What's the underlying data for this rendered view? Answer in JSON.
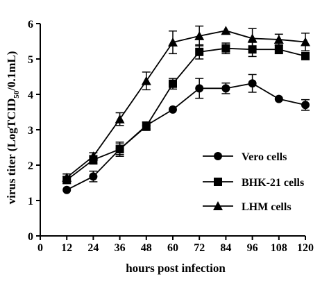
{
  "chart_data": {
    "type": "line",
    "xlabel": "hours post infection",
    "ylabel_main": "virus titer (LogTCID",
    "ylabel_sub": "50",
    "ylabel_tail": "/0.1mL)",
    "xlim": [
      0,
      120
    ],
    "ylim": [
      0,
      6
    ],
    "x_ticks": [
      0,
      12,
      24,
      36,
      48,
      60,
      72,
      84,
      96,
      108,
      120
    ],
    "x_tick_labels": [
      "0",
      "12",
      "24",
      "36",
      "48",
      "60",
      "72",
      "84",
      "96",
      "108",
      "120"
    ],
    "y_ticks": [
      0,
      1,
      2,
      3,
      4,
      5,
      6
    ],
    "y_tick_labels": [
      "0",
      "1",
      "2",
      "3",
      "4",
      "5",
      "6"
    ],
    "grid": false,
    "legend_position": "bottom-right",
    "x": [
      12,
      24,
      36,
      48,
      60,
      72,
      84,
      96,
      108,
      120
    ],
    "series": [
      {
        "name": "Vero cells",
        "marker": "circle",
        "values": [
          1.3,
          1.68,
          2.45,
          3.12,
          3.57,
          4.17,
          4.17,
          4.31,
          3.87,
          3.7
        ],
        "errors": [
          0.0,
          0.15,
          0.15,
          0.1,
          0.0,
          0.28,
          0.15,
          0.25,
          0.0,
          0.15
        ]
      },
      {
        "name": "BHK-21 cells",
        "marker": "square",
        "values": [
          1.58,
          2.15,
          2.45,
          3.1,
          4.3,
          5.2,
          5.3,
          5.27,
          5.27,
          5.08
        ],
        "errors": [
          0.1,
          0.12,
          0.2,
          0.12,
          0.15,
          0.2,
          0.15,
          0.2,
          0.12,
          0.0
        ]
      },
      {
        "name": "LHM cells",
        "marker": "triangle",
        "values": [
          1.65,
          2.25,
          3.3,
          4.38,
          5.47,
          5.65,
          5.8,
          5.58,
          5.55,
          5.48
        ],
        "errors": [
          0.1,
          0.1,
          0.18,
          0.25,
          0.32,
          0.28,
          0.0,
          0.28,
          0.15,
          0.25
        ]
      }
    ]
  }
}
